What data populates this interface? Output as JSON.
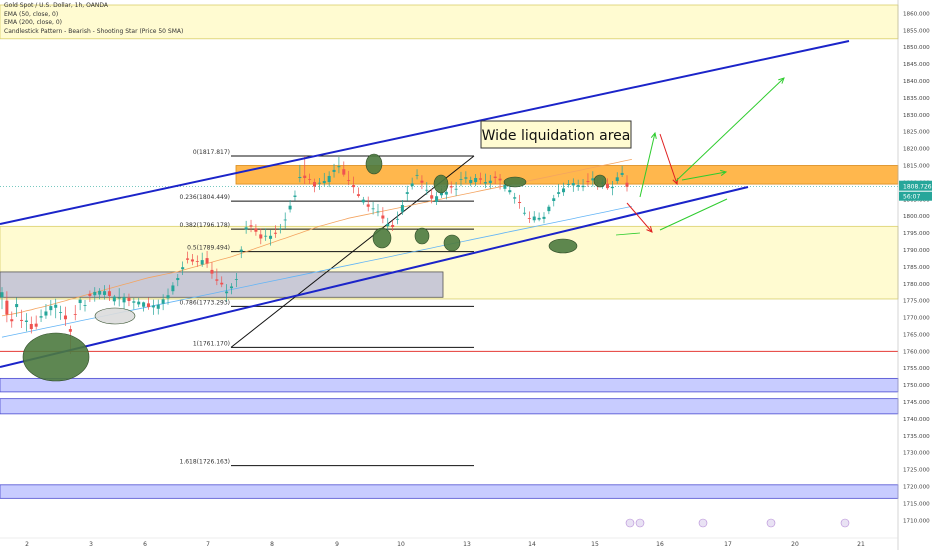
{
  "chart_data": {
    "type": "candlestick",
    "title": "Gold Spot / U.S. Dollar, 1h, OANDA",
    "indicators": [
      "EMA (50, close, 0)",
      "EMA (200, close, 0)",
      "Candlestick Pattern - Bearish - Shooting Star (Price 50 SMA)"
    ],
    "y_axis": {
      "ticks": [
        "1860.000",
        "1855.000",
        "1850.000",
        "1845.000",
        "1840.000",
        "1835.000",
        "1830.000",
        "1825.000",
        "1820.000",
        "1815.000",
        "1810.000",
        "1805.000",
        "1800.000",
        "1795.000",
        "1790.000",
        "1785.000",
        "1780.000",
        "1775.000",
        "1770.000",
        "1765.000",
        "1760.000",
        "1755.000",
        "1750.000",
        "1745.000",
        "1740.000",
        "1735.000",
        "1730.000",
        "1725.000",
        "1720.000",
        "1715.000",
        "1710.000"
      ],
      "range": [
        1707.5,
        1862.5
      ]
    },
    "x_axis": {
      "ticks": [
        "2",
        "3",
        "6",
        "7",
        "8",
        "9",
        "10",
        "13",
        "14",
        "15",
        "16",
        "17",
        "20",
        "21"
      ]
    },
    "current_price": "1808.726",
    "price_label_2": "56:07",
    "annotation": "Wide liquidation area",
    "fibonacci": [
      {
        "label": "0(1817.817)",
        "value": 1817.817
      },
      {
        "label": "0.236(1804.449)",
        "value": 1804.449
      },
      {
        "label": "0.382(1796.178)",
        "value": 1796.178
      },
      {
        "label": "0.5(1789.494)",
        "value": 1789.494
      },
      {
        "label": "0.786(1773.293)",
        "value": 1773.293
      },
      {
        "label": "1(1761.170)",
        "value": 1761.17
      },
      {
        "label": "1.618(1726.163)",
        "value": 1726.163
      }
    ],
    "zones": [
      {
        "name": "top-supply-zone",
        "from": 1852.5,
        "to": 1862.5,
        "color": "#fffbd1"
      },
      {
        "name": "main-range-zone",
        "from": 1775.5,
        "to": 1797.0,
        "color": "#fffbd1"
      },
      {
        "name": "liquidation-zone",
        "from": 1809.5,
        "to": 1815.0,
        "color": "#ffb74d"
      },
      {
        "name": "grey-zone",
        "from": 1776.0,
        "to": 1783.5,
        "color": "#c9c9d6"
      },
      {
        "name": "blue-zone-1",
        "from": 1748.0,
        "to": 1752.0,
        "color": "#c8ccff"
      },
      {
        "name": "blue-zone-2",
        "from": 1741.5,
        "to": 1746.0,
        "color": "#c8ccff"
      },
      {
        "name": "blue-zone-3",
        "from": 1716.5,
        "to": 1720.5,
        "color": "#c8ccff"
      }
    ],
    "support_level": 1760.0,
    "colors": {
      "up": "#26a69a",
      "down": "#ef5350",
      "channel": "#1b24c9",
      "ema50": "#f4a460",
      "ema200": "#64b5f6",
      "projection_up": "#2ecc2e",
      "projection_down": "#e02020"
    },
    "candles": [
      [
        1776.0,
        1779.0,
        1772.5,
        1777.5
      ],
      [
        1775.0,
        1777.8,
        1768.6,
        1770.9
      ],
      [
        1769.5,
        1771.8,
        1767.0,
        1768.9
      ],
      [
        1773.1,
        1775.9,
        1770.2,
        1774.0
      ],
      [
        1769.3,
        1772.3,
        1766.9,
        1769.0
      ],
      [
        1768.7,
        1771.3,
        1765.9,
        1769.1
      ],
      [
        1768.1,
        1770.3,
        1765.3,
        1766.6
      ],
      [
        1768.2,
        1770.6,
        1766.5,
        1767.3
      ],
      [
        1770.0,
        1772.4,
        1768.7,
        1770.4
      ],
      [
        1770.6,
        1774.0,
        1769.6,
        1771.8
      ],
      [
        1772.2,
        1775.2,
        1770.6,
        1773.4
      ],
      [
        1772.9,
        1775.6,
        1769.8,
        1773.8
      ],
      [
        1771.6,
        1773.5,
        1769.3,
        1771.6
      ],
      [
        1770.6,
        1773.2,
        1767.5,
        1769.5
      ],
      [
        1766.6,
        1767.6,
        1759.2,
        1765.8
      ],
      [
        1771.0,
        1773.7,
        1769.2,
        1770.8
      ],
      [
        1774.3,
        1776.0,
        1772.2,
        1775.3
      ],
      [
        1773.6,
        1775.2,
        1771.8,
        1773.7
      ],
      [
        1777.0,
        1778.0,
        1774.6,
        1776.4
      ],
      [
        1776.6,
        1779.0,
        1774.7,
        1777.6
      ],
      [
        1776.8,
        1778.7,
        1775.4,
        1777.9
      ],
      [
        1776.7,
        1779.6,
        1775.3,
        1777.8
      ],
      [
        1777.8,
        1779.7,
        1774.9,
        1776.4
      ],
      [
        1774.8,
        1776.7,
        1773.6,
        1776.2
      ],
      [
        1775.8,
        1778.7,
        1773.3,
        1775.9
      ],
      [
        1774.5,
        1777.2,
        1772.4,
        1776.1
      ],
      [
        1775.8,
        1777.1,
        1773.4,
        1774.9
      ],
      [
        1774.4,
        1775.8,
        1772.4,
        1774.8
      ],
      [
        1773.9,
        1775.8,
        1773.1,
        1774.7
      ],
      [
        1773.2,
        1774.7,
        1771.8,
        1774.5
      ],
      [
        1774.2,
        1775.9,
        1772.3,
        1773.1
      ],
      [
        1773.0,
        1775.3,
        1770.8,
        1773.6
      ],
      [
        1772.6,
        1775.3,
        1770.9,
        1773.8
      ],
      [
        1774.1,
        1776.9,
        1772.2,
        1775.4
      ],
      [
        1775.7,
        1778.6,
        1773.8,
        1776.6
      ],
      [
        1777.8,
        1780.5,
        1776.8,
        1779.5
      ],
      [
        1781.1,
        1782.9,
        1779.3,
        1781.7
      ],
      [
        1784.3,
        1786.6,
        1782.6,
        1784.9
      ],
      [
        1787.5,
        1789.5,
        1786.0,
        1787.1
      ],
      [
        1787.2,
        1788.8,
        1785.5,
        1786.6
      ],
      [
        1786.7,
        1788.4,
        1785.0,
        1786.5
      ],
      [
        1785.7,
        1789.2,
        1785.0,
        1787.0
      ],
      [
        1787.6,
        1789.7,
        1784.7,
        1786.0
      ],
      [
        1784.1,
        1786.4,
        1781.5,
        1783.0
      ],
      [
        1781.3,
        1784.5,
        1779.6,
        1780.9
      ],
      [
        1780.3,
        1782.2,
        1779.0,
        1779.8
      ],
      [
        1777.2,
        1779.9,
        1774.8,
        1777.7
      ],
      [
        1778.7,
        1780.2,
        1776.9,
        1779.2
      ],
      [
        1781.2,
        1783.2,
        1779.0,
        1781.4
      ],
      [
        1789.5,
        1791.1,
        1787.6,
        1790.1
      ],
      [
        1796.1,
        1798.6,
        1794.8,
        1796.7
      ],
      [
        1797.3,
        1798.9,
        1795.3,
        1796.9
      ],
      [
        1796.4,
        1797.6,
        1794.2,
        1795.4
      ],
      [
        1794.6,
        1796.3,
        1791.7,
        1793.4
      ],
      [
        1794.1,
        1796.4,
        1792.7,
        1794.2
      ],
      [
        1793.3,
        1795.9,
        1791.3,
        1794.2
      ],
      [
        1795.1,
        1797.3,
        1793.6,
        1794.8
      ],
      [
        1796.2,
        1797.7,
        1794.9,
        1796.4
      ],
      [
        1798.9,
        1801.1,
        1796.2,
        1799.0
      ],
      [
        1802.0,
        1804.8,
        1801.1,
        1803.1
      ],
      [
        1805.7,
        1807.6,
        1804.6,
        1806.1
      ],
      [
        1811.3,
        1815.2,
        1810.0,
        1811.6
      ],
      [
        1812.0,
        1817.8,
        1809.5,
        1811.3
      ],
      [
        1811.0,
        1812.6,
        1809.6,
        1810.8
      ],
      [
        1810.1,
        1811.1,
        1807.1,
        1808.8
      ],
      [
        1809.8,
        1811.3,
        1807.8,
        1809.9
      ],
      [
        1809.8,
        1812.8,
        1808.9,
        1810.4
      ],
      [
        1810.1,
        1813.3,
        1808.6,
        1811.9
      ],
      [
        1813.1,
        1815.5,
        1811.4,
        1813.7
      ],
      [
        1814.5,
        1817.5,
        1812.7,
        1814.8
      ],
      [
        1813.9,
        1816.2,
        1811.7,
        1812.3
      ],
      [
        1810.7,
        1813.4,
        1809.2,
        1810.5
      ],
      [
        1809.2,
        1811.7,
        1806.8,
        1808.6
      ],
      [
        1806.5,
        1808.5,
        1805.5,
        1806.0
      ],
      [
        1804.1,
        1805.7,
        1803.4,
        1804.9
      ],
      [
        1803.5,
        1805.8,
        1801.4,
        1802.8
      ],
      [
        1802.2,
        1804.2,
        1800.5,
        1802.3
      ],
      [
        1801.4,
        1803.6,
        1800.0,
        1801.4
      ],
      [
        1800.2,
        1802.7,
        1797.9,
        1799.3
      ],
      [
        1797.0,
        1799.5,
        1795.5,
        1797.7
      ],
      [
        1797.4,
        1798.8,
        1795.6,
        1796.8
      ],
      [
        1799.0,
        1801.4,
        1797.6,
        1799.2
      ],
      [
        1801.3,
        1804.8,
        1800.4,
        1803.3
      ],
      [
        1806.6,
        1809.0,
        1804.6,
        1807.1
      ],
      [
        1808.9,
        1811.4,
        1807.9,
        1809.7
      ],
      [
        1812.0,
        1813.9,
        1810.9,
        1812.2
      ],
      [
        1810.5,
        1812.1,
        1808.0,
        1809.9
      ],
      [
        1807.7,
        1810.1,
        1806.3,
        1807.8
      ],
      [
        1806.2,
        1808.0,
        1803.8,
        1805.2
      ],
      [
        1804.2,
        1807.2,
        1803.3,
        1805.9
      ],
      [
        1806.2,
        1808.2,
        1805.4,
        1807.0
      ],
      [
        1806.4,
        1809.2,
        1805.0,
        1807.2
      ],
      [
        1808.9,
        1810.3,
        1806.7,
        1808.5
      ],
      [
        1808.0,
        1810.1,
        1806.0,
        1808.1
      ],
      [
        1810.8,
        1813.1,
        1808.9,
        1811.0
      ],
      [
        1811.1,
        1813.3,
        1809.8,
        1811.5
      ],
      [
        1809.8,
        1811.7,
        1808.9,
        1810.7
      ],
      [
        1810.1,
        1812.5,
        1808.9,
        1811.3
      ],
      [
        1811.2,
        1812.9,
        1809.5,
        1810.8
      ],
      [
        1809.7,
        1812.6,
        1808.3,
        1810.1
      ],
      [
        1809.8,
        1812.2,
        1808.2,
        1810.5
      ],
      [
        1811.7,
        1813.3,
        1809.5,
        1811.3
      ],
      [
        1811.1,
        1812.5,
        1807.9,
        1810.6
      ],
      [
        1808.1,
        1810.5,
        1807.3,
        1809.3
      ],
      [
        1807.1,
        1809.5,
        1806.4,
        1807.7
      ],
      [
        1805.2,
        1806.9,
        1803.7,
        1805.6
      ],
      [
        1804.2,
        1806.3,
        1802.2,
        1803.9
      ],
      [
        1801.0,
        1802.7,
        1800.2,
        1801.0
      ],
      [
        1799.4,
        1801.4,
        1798.0,
        1799.3
      ],
      [
        1798.8,
        1801.5,
        1798.1,
        1799.9
      ],
      [
        1799.0,
        1801.1,
        1798.5,
        1799.5
      ],
      [
        1799.2,
        1801.2,
        1797.9,
        1799.8
      ],
      [
        1801.5,
        1803.4,
        1800.6,
        1802.8
      ],
      [
        1804.5,
        1806.3,
        1802.9,
        1805.3
      ],
      [
        1806.6,
        1809.5,
        1805.6,
        1807.1
      ],
      [
        1807.1,
        1809.9,
        1806.0,
        1808.2
      ],
      [
        1809.5,
        1810.7,
        1808.5,
        1809.5
      ],
      [
        1809.1,
        1811.2,
        1807.2,
        1809.8
      ],
      [
        1808.7,
        1810.8,
        1807.5,
        1809.2
      ],
      [
        1808.6,
        1811.0,
        1807.4,
        1809.0
      ],
      [
        1810.4,
        1812.7,
        1808.7,
        1810.1
      ],
      [
        1810.6,
        1813.3,
        1808.8,
        1811.2
      ],
      [
        1810.0,
        1811.9,
        1807.8,
        1809.9
      ],
      [
        1809.6,
        1811.1,
        1808.1,
        1810.0
      ],
      [
        1809.6,
        1811.2,
        1807.8,
        1808.3
      ],
      [
        1808.3,
        1810.4,
        1806.2,
        1808.7
      ],
      [
        1810.4,
        1813.0,
        1809.6,
        1811.5
      ],
      [
        1812.2,
        1814.9,
        1811.6,
        1812.8
      ],
      [
        1809.9,
        1812.1,
        1807.3,
        1808.7
      ]
    ],
    "ema50": [
      1770.5,
      1770.8,
      1771.0,
      1771.3,
      1771.6,
      1772.0,
      1772.3,
      1772.7,
      1773.0,
      1773.4,
      1773.8,
      1774.2,
      1774.6,
      1775.0,
      1775.4,
      1775.8,
      1776.2,
      1776.6,
      1777.0,
      1777.4,
      1777.8,
      1778.2,
      1778.6,
      1779.0,
      1779.4,
      1779.8,
      1780.2,
      1780.6,
      1781.0,
      1781.4,
      1781.8,
      1782.1,
      1782.4,
      1782.7,
      1783.0,
      1783.3,
      1783.6,
      1784.0,
      1784.4,
      1784.8,
      1785.2,
      1785.6,
      1786.0,
      1786.4,
      1786.8,
      1787.2,
      1787.6,
      1788.0,
      1788.5,
      1789.0,
      1789.5,
      1790.0,
      1790.5,
      1791.0,
      1791.5,
      1792.0,
      1792.5,
      1793.0,
      1793.5,
      1794.0,
      1794.5,
      1795.0,
      1795.5,
      1796.0,
      1796.5,
      1797.0,
      1797.4,
      1797.8,
      1798.2,
      1798.6,
      1799.0,
      1799.4,
      1799.7,
      1800.0,
      1800.3,
      1800.6,
      1800.9,
      1801.2,
      1801.5,
      1801.8,
      1802.1,
      1802.4,
      1802.7,
      1803.0,
      1803.3,
      1803.6,
      1803.9,
      1804.2,
      1804.5,
      1804.8,
      1805.1,
      1805.4,
      1805.7,
      1806.0,
      1806.3,
      1806.6,
      1806.9,
      1807.2,
      1807.5,
      1807.8,
      1808.1,
      1808.4,
      1808.7,
      1809.0,
      1809.3,
      1809.6,
      1809.9,
      1810.2,
      1810.5,
      1810.8,
      1811.1,
      1811.4,
      1811.7,
      1812.0,
      1812.3,
      1812.6,
      1812.9,
      1813.2,
      1813.5,
      1813.8,
      1814.1,
      1814.4,
      1814.7,
      1815.0,
      1815.3,
      1815.6,
      1815.9,
      1816.2,
      1816.5,
      1816.8
    ],
    "ema200": [
      1764.2,
      1764.5,
      1764.8,
      1765.1,
      1765.4,
      1765.7,
      1766.0,
      1766.3,
      1766.6,
      1766.9,
      1767.2,
      1767.5,
      1767.8,
      1768.1,
      1768.4,
      1768.7,
      1769.0,
      1769.3,
      1769.6,
      1769.9,
      1770.2,
      1770.5,
      1770.8,
      1771.1,
      1771.4,
      1771.7,
      1772.0,
      1772.3,
      1772.6,
      1772.9,
      1773.2,
      1773.5,
      1773.8,
      1774.1,
      1774.4,
      1774.7,
      1775.0,
      1775.3,
      1775.6,
      1775.9,
      1776.2,
      1776.5,
      1776.8,
      1777.1,
      1777.4,
      1777.7,
      1778.0,
      1778.3,
      1778.6,
      1778.9,
      1779.2,
      1779.5,
      1779.8,
      1780.1,
      1780.4,
      1780.7,
      1781.0,
      1781.3,
      1781.6,
      1781.9,
      1782.2,
      1782.5,
      1782.8,
      1783.1,
      1783.4,
      1783.7,
      1784.0,
      1784.3,
      1784.6,
      1784.9,
      1785.2,
      1785.5,
      1785.8,
      1786.1,
      1786.4,
      1786.7,
      1787.0,
      1787.3,
      1787.6,
      1787.9,
      1788.2,
      1788.5,
      1788.8,
      1789.1,
      1789.4,
      1789.7,
      1790.0,
      1790.3,
      1790.6,
      1790.9,
      1791.2,
      1791.5,
      1791.8,
      1792.1,
      1792.4,
      1792.7,
      1793.0,
      1793.3,
      1793.6,
      1793.9,
      1794.2,
      1794.5,
      1794.8,
      1795.1,
      1795.4,
      1795.7,
      1796.0,
      1796.3,
      1796.6,
      1796.9,
      1797.2,
      1797.5,
      1797.8,
      1798.1,
      1798.4,
      1798.7,
      1799.0,
      1799.3,
      1799.6,
      1799.9,
      1800.2,
      1800.5,
      1800.8,
      1801.1,
      1801.4,
      1801.7,
      1802.0,
      1802.3,
      1802.6,
      1802.9
    ]
  }
}
